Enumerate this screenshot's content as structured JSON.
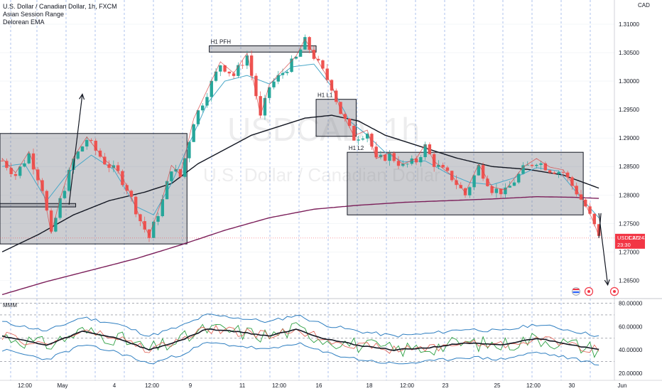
{
  "header": {
    "symbol_line": "U.S. Dollar / Canadian Dollar, 1h, FXCM",
    "indicator_1": "Asian Session Range",
    "indicator_2": "Delorean EMA",
    "currency": "CAD",
    "watermark_symbol": "USDCAD, 1h",
    "watermark_name": "U.S. Dollar / Canadian Dollar"
  },
  "price_tag": {
    "symbol": "USDCAD",
    "value": "1.27243",
    "countdown": "23:30"
  },
  "oscillator": {
    "name": "MMM"
  },
  "chart_data": [
    {
      "type": "candlestick",
      "timeframe": "1h",
      "ylim": [
        1.2618,
        1.3125
      ],
      "yticks": [
        "1.31000",
        "1.30500",
        "1.30000",
        "1.29500",
        "1.29000",
        "1.28500",
        "1.28000",
        "1.27500",
        "1.27000",
        "1.26500"
      ],
      "xticks": [
        "12:00",
        "May",
        "4",
        "12:00",
        "9",
        "11",
        "12:00",
        "16",
        "18",
        "12:00",
        "23",
        "25",
        "12:00",
        "30",
        "Jun"
      ],
      "last_price": 1.27243,
      "close_path": [
        [
          0,
          1.286
        ],
        [
          3,
          1.2835
        ],
        [
          6,
          1.2872
        ],
        [
          9,
          1.2812
        ],
        [
          11,
          1.2728
        ],
        [
          13,
          1.279
        ],
        [
          16,
          1.2862
        ],
        [
          19,
          1.2898
        ],
        [
          23,
          1.2858
        ],
        [
          26,
          1.2838
        ],
        [
          28,
          1.2812
        ],
        [
          31,
          1.2755
        ],
        [
          33,
          1.2725
        ],
        [
          36,
          1.279
        ],
        [
          38,
          1.2848
        ],
        [
          40,
          1.2832
        ],
        [
          43,
          1.293
        ],
        [
          46,
          1.298
        ],
        [
          49,
          1.303
        ],
        [
          52,
          1.301
        ],
        [
          55,
          1.3045
        ],
        [
          57,
          1.2975
        ],
        [
          58,
          1.2935
        ],
        [
          60,
          1.299
        ],
        [
          63,
          1.3015
        ],
        [
          66,
          1.304
        ],
        [
          68,
          1.307
        ],
        [
          71,
          1.303
        ],
        [
          74,
          1.299
        ],
        [
          76,
          1.2945
        ],
        [
          79,
          1.29
        ],
        [
          82,
          1.291
        ],
        [
          84,
          1.286
        ],
        [
          87,
          1.287
        ],
        [
          90,
          1.285
        ],
        [
          93,
          1.286
        ],
        [
          95,
          1.2885
        ],
        [
          97,
          1.2855
        ],
        [
          101,
          1.283
        ],
        [
          104,
          1.28
        ],
        [
          107,
          1.285
        ],
        [
          110,
          1.281
        ],
        [
          113,
          1.2805
        ],
        [
          117,
          1.2845
        ],
        [
          120,
          1.286
        ],
        [
          123,
          1.2845
        ],
        [
          126,
          1.284
        ],
        [
          129,
          1.2805
        ],
        [
          131,
          1.278
        ],
        [
          133,
          1.2745
        ],
        [
          134,
          1.2724
        ]
      ],
      "ema_fast_path": [
        [
          0,
          1.285
        ],
        [
          5,
          1.2855
        ],
        [
          10,
          1.279
        ],
        [
          15,
          1.284
        ],
        [
          20,
          1.287
        ],
        [
          25,
          1.2845
        ],
        [
          30,
          1.278
        ],
        [
          34,
          1.2765
        ],
        [
          38,
          1.282
        ],
        [
          42,
          1.289
        ],
        [
          46,
          1.296
        ],
        [
          50,
          1.3
        ],
        [
          55,
          1.301
        ],
        [
          60,
          1.2995
        ],
        [
          65,
          1.3025
        ],
        [
          70,
          1.303
        ],
        [
          74,
          1.299
        ],
        [
          78,
          1.293
        ],
        [
          82,
          1.2905
        ],
        [
          86,
          1.2875
        ],
        [
          90,
          1.2858
        ],
        [
          95,
          1.286
        ],
        [
          100,
          1.2838
        ],
        [
          105,
          1.2822
        ],
        [
          110,
          1.2818
        ],
        [
          115,
          1.283
        ],
        [
          120,
          1.2848
        ],
        [
          125,
          1.2842
        ],
        [
          130,
          1.2795
        ],
        [
          134,
          1.276
        ]
      ],
      "ema_200_path": [
        [
          0,
          1.27
        ],
        [
          8,
          1.273
        ],
        [
          16,
          1.2765
        ],
        [
          24,
          1.279
        ],
        [
          32,
          1.2805
        ],
        [
          38,
          1.282
        ],
        [
          44,
          1.2855
        ],
        [
          50,
          1.288
        ],
        [
          56,
          1.2905
        ],
        [
          62,
          1.292
        ],
        [
          68,
          1.2935
        ],
        [
          74,
          1.294
        ],
        [
          80,
          1.293
        ],
        [
          86,
          1.2905
        ],
        [
          94,
          1.2885
        ],
        [
          102,
          1.2865
        ],
        [
          110,
          1.285
        ],
        [
          118,
          1.2845
        ],
        [
          126,
          1.2835
        ],
        [
          134,
          1.2812
        ]
      ],
      "ema_800_path": [
        [
          0,
          1.2625
        ],
        [
          10,
          1.2648
        ],
        [
          20,
          1.2668
        ],
        [
          30,
          1.2688
        ],
        [
          40,
          1.2712
        ],
        [
          50,
          1.2738
        ],
        [
          60,
          1.276
        ],
        [
          70,
          1.2775
        ],
        [
          80,
          1.2782
        ],
        [
          90,
          1.2787
        ],
        [
          100,
          1.279
        ],
        [
          110,
          1.2793
        ],
        [
          120,
          1.2797
        ],
        [
          128,
          1.2796
        ],
        [
          134,
          1.2794
        ]
      ],
      "annotations": [
        {
          "label": "",
          "kind": "range_box",
          "x": [
            0,
            42
          ],
          "y": [
            1.2714,
            1.2908
          ]
        },
        {
          "label": "",
          "kind": "level_bar",
          "x": [
            0,
            17
          ],
          "y": [
            1.2779,
            1.2785
          ]
        },
        {
          "label": "H1 PFH",
          "kind": "level_bar",
          "x": [
            47,
            71
          ],
          "y": [
            1.3051,
            1.3062
          ]
        },
        {
          "label": "H1 L1",
          "kind": "range_box",
          "x": [
            71,
            80
          ],
          "y": [
            1.2903,
            1.2968
          ]
        },
        {
          "label": "H1 L2",
          "kind": "range_box",
          "x": [
            78,
            131
          ],
          "y": [
            1.2765,
            1.2875
          ]
        }
      ],
      "projected_arrows": [
        {
          "from": [
            15,
            1.2783
          ],
          "to": [
            18,
            1.2977
          ]
        },
        {
          "from": [
            134,
            1.2768
          ],
          "to": [
            136,
            1.2642
          ]
        }
      ]
    },
    {
      "type": "line",
      "title": "MMM",
      "ylim": [
        17,
        84
      ],
      "yticks": [
        "80.00000",
        "60.00000",
        "40.00000",
        "20.00000"
      ],
      "dashed_levels": [
        80,
        70,
        50,
        30
      ]
    }
  ]
}
